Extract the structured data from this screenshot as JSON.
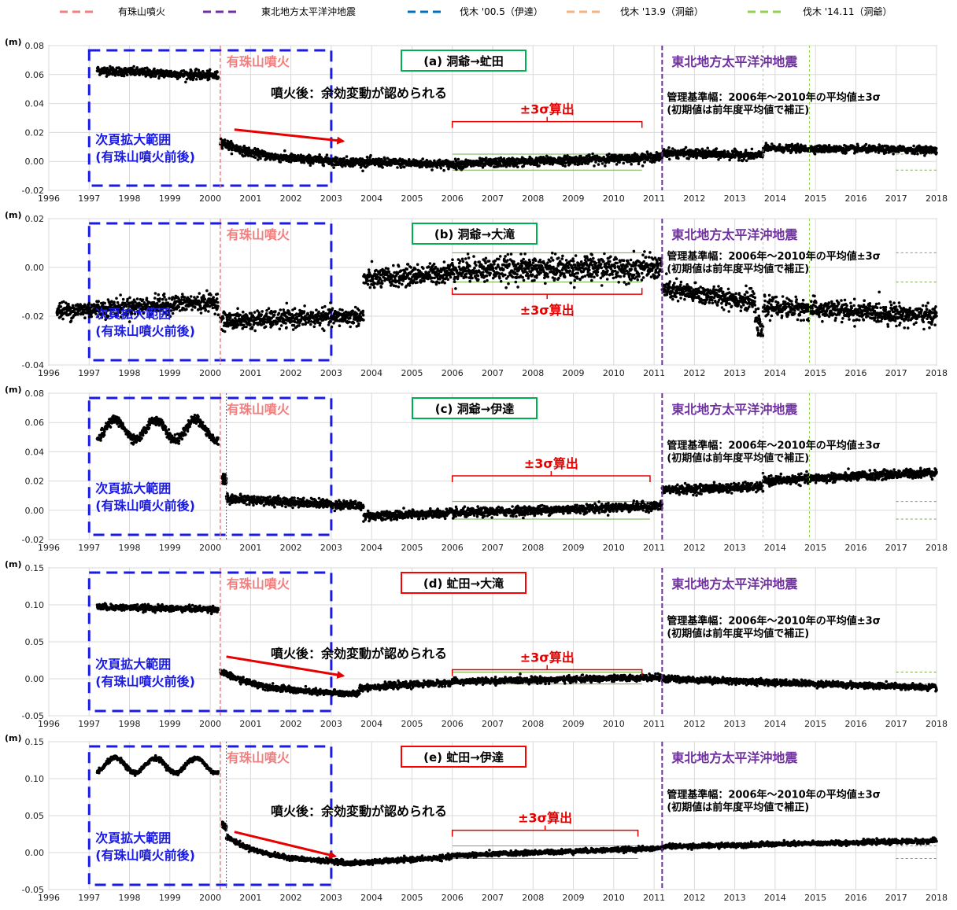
{
  "legend": [
    {
      "label": "有珠山噴火",
      "color": "#f08080"
    },
    {
      "label": "東北地方太平洋沖地震",
      "color": "#7030a0"
    },
    {
      "label": "伐木 '00.5（伊達）",
      "color": "#0070c0"
    },
    {
      "label": "伐木 '13.9（洞爺）",
      "color": "#f4b183"
    },
    {
      "label": "伐木 '14.11（洞爺）",
      "color": "#92d050"
    }
  ],
  "annotations": {
    "eruption": "有珠山噴火",
    "earthquake": "東北地方太平洋沖地震",
    "enlarge_1": "次頁拡大範囲",
    "enlarge_2": "(有珠山噴火前後)",
    "sigma": "±3σ算出",
    "after_eruption": "噴火後：余効変動が認められる",
    "criteria_1": "管理基準幅：2006年～2010年の平均値±3σ",
    "criteria_2": "(初期値は前年度平均値で補正)"
  },
  "unit_label": "(m)",
  "chart_data": [
    {
      "type": "scatter",
      "title": "(a) 洞爺→虻田",
      "title_box": "#00b050",
      "xlim": [
        1996,
        2018
      ],
      "ylim": [
        -0.02,
        0.08
      ],
      "yticks": [
        "0.08",
        "0.06",
        "0.04",
        "0.02",
        "0.00",
        "-0.02"
      ],
      "xticks": [
        "1996",
        "1997",
        "1998",
        "1999",
        "2000",
        "2001",
        "2002",
        "2003",
        "2004",
        "2005",
        "2006",
        "2007",
        "2008",
        "2009",
        "2010",
        "2011",
        "2012",
        "2013",
        "2014",
        "2015",
        "2016",
        "2017",
        "2018"
      ],
      "segments": [
        {
          "x": [
            1997.2,
            2000.2
          ],
          "y": [
            0.063,
            0.059
          ],
          "noise": 0.0015
        },
        {
          "x": [
            2000.25,
            2003.0
          ],
          "y": [
            0.014,
            0.0
          ],
          "noise": 0.0015,
          "curve": true
        },
        {
          "x": [
            2003.0,
            2006.0
          ],
          "y": [
            0.0,
            -0.002
          ],
          "noise": 0.0015
        },
        {
          "x": [
            2006.0,
            2011.2
          ],
          "y": [
            -0.002,
            0.003
          ],
          "noise": 0.0015
        },
        {
          "x": [
            2011.2,
            2013.7
          ],
          "y": [
            0.006,
            0.004
          ],
          "noise": 0.0015
        },
        {
          "x": [
            2013.7,
            2018.0
          ],
          "y": [
            0.009,
            0.008
          ],
          "noise": 0.0012
        }
      ],
      "sigma_band": {
        "x": [
          2006.0,
          2010.7
        ],
        "upper": 0.005,
        "lower": -0.006
      },
      "sigma_text_y": 0.034,
      "show_after": true,
      "after_text_y": 0.044,
      "arrow": {
        "from": [
          2000.6,
          0.022
        ],
        "to": [
          2003.3,
          0.014
        ]
      }
    },
    {
      "type": "scatter",
      "title": "(b) 洞爺→大滝",
      "title_box": "#00b050",
      "xlim": [
        1996,
        2018
      ],
      "ylim": [
        -0.04,
        0.02
      ],
      "yticks": [
        "0.02",
        "0.00",
        "-0.02",
        "-0.04"
      ],
      "xticks": [
        "1996",
        "1997",
        "1998",
        "1999",
        "2000",
        "2001",
        "2002",
        "2003",
        "2004",
        "2005",
        "2006",
        "2007",
        "2008",
        "2009",
        "2010",
        "2011",
        "2012",
        "2013",
        "2014",
        "2015",
        "2016",
        "2017",
        "2018"
      ],
      "segments": [
        {
          "x": [
            1996.2,
            2000.2
          ],
          "y": [
            -0.018,
            -0.014
          ],
          "noise": 0.0018
        },
        {
          "x": [
            2000.25,
            2003.8
          ],
          "y": [
            -0.022,
            -0.02
          ],
          "noise": 0.0018
        },
        {
          "x": [
            2003.8,
            2006.0
          ],
          "y": [
            -0.005,
            -0.002
          ],
          "noise": 0.002
        },
        {
          "x": [
            2006.0,
            2011.2
          ],
          "y": [
            -0.001,
            0.0
          ],
          "noise": 0.0025
        },
        {
          "x": [
            2011.2,
            2013.5
          ],
          "y": [
            -0.009,
            -0.014
          ],
          "noise": 0.002
        },
        {
          "x": [
            2013.5,
            2013.7
          ],
          "y": [
            -0.02,
            -0.028
          ],
          "noise": 0.002
        },
        {
          "x": [
            2013.7,
            2018.0
          ],
          "y": [
            -0.016,
            -0.02
          ],
          "noise": 0.002
        }
      ],
      "sigma_band": {
        "x": [
          2006.0,
          2010.7
        ],
        "upper": 0.006,
        "lower": -0.006
      },
      "sigma_text_y": -0.019,
      "show_after": false,
      "arrow": null
    },
    {
      "type": "scatter",
      "title": "(c) 洞爺→伊達",
      "title_box": "#00b050",
      "xlim": [
        1996,
        2018
      ],
      "ylim": [
        -0.02,
        0.08
      ],
      "yticks": [
        "0.08",
        "0.06",
        "0.04",
        "0.02",
        "0.00",
        "-0.02"
      ],
      "xticks": [
        "1996",
        "1997",
        "1998",
        "1999",
        "2000",
        "2001",
        "2002",
        "2003",
        "2004",
        "2005",
        "2006",
        "2007",
        "2008",
        "2009",
        "2010",
        "2011",
        "2012",
        "2013",
        "2014",
        "2015",
        "2016",
        "2017",
        "2018"
      ],
      "segments": [
        {
          "x": [
            1997.2,
            2000.2
          ],
          "y": [
            0.055,
            0.055
          ],
          "noise": 0.0015,
          "wave": 0.007
        },
        {
          "x": [
            2000.3,
            2000.4
          ],
          "y": [
            0.022,
            0.02
          ],
          "noise": 0.002
        },
        {
          "x": [
            2000.4,
            2003.8
          ],
          "y": [
            0.008,
            0.003
          ],
          "noise": 0.0015
        },
        {
          "x": [
            2003.8,
            2006.0
          ],
          "y": [
            -0.004,
            -0.002
          ],
          "noise": 0.0015
        },
        {
          "x": [
            2006.0,
            2011.2
          ],
          "y": [
            -0.002,
            0.003
          ],
          "noise": 0.0015
        },
        {
          "x": [
            2011.2,
            2013.7
          ],
          "y": [
            0.014,
            0.016
          ],
          "noise": 0.0015
        },
        {
          "x": [
            2013.7,
            2018.0
          ],
          "y": [
            0.02,
            0.026
          ],
          "noise": 0.0015
        }
      ],
      "sigma_band": {
        "x": [
          2006.0,
          2010.9
        ],
        "upper": 0.006,
        "lower": -0.006
      },
      "sigma_text_y": 0.03,
      "show_after": false,
      "arrow": null
    },
    {
      "type": "scatter",
      "title": "(d) 虻田→大滝",
      "title_box": "#ff0000",
      "xlim": [
        1996,
        2018
      ],
      "ylim": [
        -0.05,
        0.15
      ],
      "yticks": [
        "0.15",
        "0.10",
        "0.05",
        "0.00",
        "-0.05"
      ],
      "xticks": [
        "1996",
        "1997",
        "1998",
        "1999",
        "2000",
        "2001",
        "2002",
        "2003",
        "2004",
        "2005",
        "2006",
        "2007",
        "2008",
        "2009",
        "2010",
        "2011",
        "2012",
        "2013",
        "2014",
        "2015",
        "2016",
        "2017",
        "2018"
      ],
      "segments": [
        {
          "x": [
            1997.2,
            2000.2
          ],
          "y": [
            0.097,
            0.094
          ],
          "noise": 0.002
        },
        {
          "x": [
            2000.25,
            2003.7
          ],
          "y": [
            0.01,
            -0.022
          ],
          "noise": 0.002,
          "curve": true
        },
        {
          "x": [
            2003.7,
            2006.0
          ],
          "y": [
            -0.012,
            -0.005
          ],
          "noise": 0.002
        },
        {
          "x": [
            2006.0,
            2011.2
          ],
          "y": [
            -0.004,
            0.002
          ],
          "noise": 0.002
        },
        {
          "x": [
            2011.2,
            2018.0
          ],
          "y": [
            0.0,
            -0.012
          ],
          "noise": 0.002
        }
      ],
      "sigma_band": {
        "x": [
          2006.0,
          2010.7
        ],
        "upper": 0.009,
        "lower": -0.007
      },
      "sigma_text_y": 0.025,
      "show_after": true,
      "after_text_y": 0.028,
      "arrow": {
        "from": [
          2000.4,
          0.03
        ],
        "to": [
          2003.3,
          0.004
        ]
      }
    },
    {
      "type": "scatter",
      "title": "(e) 虻田→伊達",
      "title_box": "#ff0000",
      "xlim": [
        1996,
        2018
      ],
      "ylim": [
        -0.05,
        0.15
      ],
      "yticks": [
        "0.15",
        "0.10",
        "0.05",
        "0.00",
        "-0.05"
      ],
      "xticks": [
        "1996",
        "1997",
        "1998",
        "1999",
        "2000",
        "2001",
        "2002",
        "2003",
        "2004",
        "2005",
        "2006",
        "2007",
        "2008",
        "2009",
        "2010",
        "2011",
        "2012",
        "2013",
        "2014",
        "2015",
        "2016",
        "2017",
        "2018"
      ],
      "segments": [
        {
          "x": [
            1997.2,
            2000.2
          ],
          "y": [
            0.118,
            0.118
          ],
          "noise": 0.0015,
          "wave": 0.01
        },
        {
          "x": [
            2000.3,
            2000.4
          ],
          "y": [
            0.038,
            0.035
          ],
          "noise": 0.002
        },
        {
          "x": [
            2000.4,
            2003.3
          ],
          "y": [
            0.022,
            -0.014
          ],
          "noise": 0.0015,
          "curve": true
        },
        {
          "x": [
            2003.3,
            2006.0
          ],
          "y": [
            -0.015,
            -0.006
          ],
          "noise": 0.0015
        },
        {
          "x": [
            2006.0,
            2011.2
          ],
          "y": [
            -0.004,
            0.006
          ],
          "noise": 0.0015
        },
        {
          "x": [
            2011.2,
            2018.0
          ],
          "y": [
            0.008,
            0.016
          ],
          "noise": 0.0015
        }
      ],
      "sigma_band": {
        "x": [
          2006.0,
          2010.6
        ],
        "upper": 0.009,
        "lower": -0.008
      },
      "sigma_text_y": 0.043,
      "show_after": true,
      "after_text_y": 0.05,
      "arrow": {
        "from": [
          2000.6,
          0.028
        ],
        "to": [
          2003.1,
          -0.005
        ]
      }
    }
  ],
  "events": {
    "eruption_x": 2000.25,
    "earthquake_x": 2011.2,
    "felling_date_x": 2000.4,
    "felling_toya1_x": 2013.7,
    "felling_toya2_x": 2014.85
  }
}
